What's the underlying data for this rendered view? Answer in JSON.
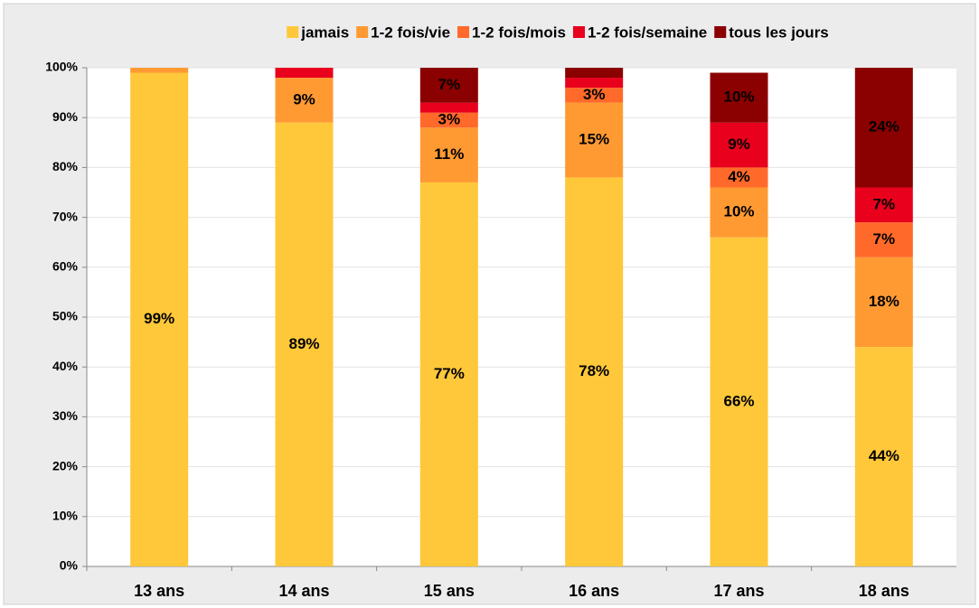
{
  "chart_data": {
    "type": "stacked_bar",
    "categories": [
      "13 ans",
      "14 ans",
      "15 ans",
      "16 ans",
      "17 ans",
      "18 ans"
    ],
    "series": [
      {
        "name": "jamais",
        "color": "#ffc83a",
        "values": [
          99,
          89,
          77,
          78,
          66,
          44
        ],
        "value_labels": [
          "99%",
          "89%",
          "77%",
          "78%",
          "66%",
          "44%"
        ]
      },
      {
        "name": "1-2 fois/vie",
        "color": "#ff9a33",
        "values": [
          1,
          9,
          11,
          15,
          10,
          18
        ],
        "value_labels": [
          null,
          "9%",
          "11%",
          "15%",
          "10%",
          "18%"
        ]
      },
      {
        "name": "1-2 fois/mois",
        "color": "#ff6a2a",
        "values": [
          0,
          0,
          3,
          3,
          4,
          7
        ],
        "value_labels": [
          null,
          null,
          "3%",
          "3%",
          "4%",
          "7%"
        ]
      },
      {
        "name": "1-2 fois/semaine",
        "color": "#e8001c",
        "values": [
          0,
          2,
          2,
          2,
          9,
          7
        ],
        "value_labels": [
          null,
          null,
          null,
          null,
          "9%",
          "7%"
        ]
      },
      {
        "name": "tous les jours",
        "color": "#8b0000",
        "values": [
          0,
          0,
          7,
          2,
          10,
          24
        ],
        "value_labels": [
          null,
          null,
          "7%",
          null,
          "10%",
          "24%"
        ]
      }
    ],
    "ylim": [
      0,
      100
    ],
    "yticks": [
      {
        "value": 0,
        "label": "0%"
      },
      {
        "value": 10,
        "label": "10%"
      },
      {
        "value": 20,
        "label": "20%"
      },
      {
        "value": 30,
        "label": "30%"
      },
      {
        "value": 40,
        "label": "40%"
      },
      {
        "value": 50,
        "label": "50%"
      },
      {
        "value": 60,
        "label": "60%"
      },
      {
        "value": 70,
        "label": "70%"
      },
      {
        "value": 80,
        "label": "80%"
      },
      {
        "value": 90,
        "label": "90%"
      },
      {
        "value": 100,
        "label": "100%"
      }
    ],
    "grid": true,
    "legend": "top"
  }
}
